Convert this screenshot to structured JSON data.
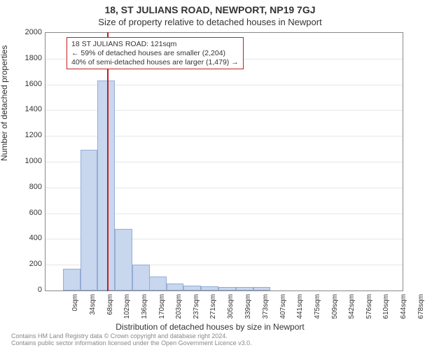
{
  "chart": {
    "type": "histogram",
    "title": "18, ST JULIANS ROAD, NEWPORT, NP19 7GJ",
    "subtitle": "Size of property relative to detached houses in Newport",
    "ylabel": "Number of detached properties",
    "xlabel": "Distribution of detached houses by size in Newport",
    "background_color": "#ffffff",
    "grid_color": "#e6e6e6",
    "axis_color": "#888888",
    "title_fontsize": 14,
    "subtitle_fontsize": 13,
    "label_fontsize": 12,
    "tick_fontsize": 11,
    "xtick_fontsize": 10,
    "ylim": [
      0,
      2000
    ],
    "ytick_step": 200,
    "xlim": [
      0,
      700
    ],
    "xticks": [
      0,
      34,
      68,
      102,
      136,
      170,
      203,
      237,
      271,
      305,
      339,
      373,
      407,
      441,
      475,
      509,
      542,
      576,
      610,
      644,
      678
    ],
    "xtick_unit": "sqm",
    "bar_fill": "#c8d6ee",
    "bar_border": "#94add6",
    "bar_width_sqm": 34,
    "bars": [
      {
        "x0": 34,
        "count": 170
      },
      {
        "x0": 68,
        "count": 1090
      },
      {
        "x0": 102,
        "count": 1630
      },
      {
        "x0": 136,
        "count": 480
      },
      {
        "x0": 170,
        "count": 200
      },
      {
        "x0": 203,
        "count": 110
      },
      {
        "x0": 237,
        "count": 55
      },
      {
        "x0": 271,
        "count": 40
      },
      {
        "x0": 305,
        "count": 30
      },
      {
        "x0": 339,
        "count": 25
      },
      {
        "x0": 373,
        "count": 25
      },
      {
        "x0": 407,
        "count": 25
      }
    ],
    "marker": {
      "value_sqm": 121,
      "line_color": "#c41f1f",
      "line_width": 2
    },
    "annotation": {
      "lines": [
        "18 ST JULIANS ROAD: 121sqm",
        "← 59% of detached houses are smaller (2,204)",
        "40% of semi-detached houses are larger (1,479) →"
      ],
      "border_color": "#c41f1f",
      "bg_color": "#ffffff"
    },
    "footer": {
      "line1": "Contains HM Land Registry data © Crown copyright and database right 2024.",
      "line2": "Contains public sector information licensed under the Open Government Licence v3.0.",
      "color": "#888888"
    }
  }
}
